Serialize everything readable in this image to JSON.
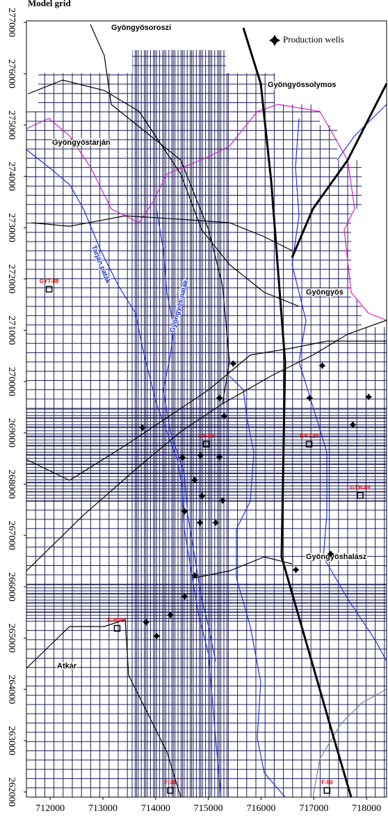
{
  "map": {
    "title": "Model grid",
    "legend": "Production wells",
    "xlim": [
      711550,
      718380
    ],
    "ylim": [
      261900,
      277030
    ],
    "xticks": [
      712000,
      713000,
      714000,
      715000,
      716000,
      717000,
      718000
    ],
    "yticks": [
      262000,
      263000,
      264000,
      265000,
      266000,
      267000,
      268000,
      269000,
      270000,
      271000,
      272000,
      273000,
      274000,
      275000,
      276000,
      277000
    ],
    "towns": [
      "Gyöngyösoroszi",
      "Gyöngyössolymos",
      "Gyöngyöstarján",
      "Gyöngyös",
      "Gyöngyöshalász",
      "Atkár"
    ],
    "streams": [
      "Tarján patak",
      "Gyöngyös patak"
    ],
    "wells": [
      [
        715470,
        270350
      ],
      [
        717160,
        270310
      ],
      [
        716920,
        269680
      ],
      [
        718040,
        269700
      ],
      [
        715210,
        269680
      ],
      [
        715300,
        269330
      ],
      [
        713750,
        269100
      ],
      [
        717740,
        269160
      ],
      [
        714850,
        268560
      ],
      [
        715210,
        268530
      ],
      [
        714510,
        268520
      ],
      [
        714740,
        268080
      ],
      [
        714880,
        267770
      ],
      [
        715270,
        267680
      ],
      [
        714550,
        267470
      ],
      [
        714840,
        267250
      ],
      [
        715140,
        267250
      ],
      [
        717320,
        266640
      ],
      [
        716660,
        266330
      ],
      [
        714740,
        266220
      ],
      [
        714550,
        265810
      ],
      [
        713820,
        265310
      ],
      [
        714280,
        265450
      ],
      [
        714020,
        265040
      ]
    ],
    "observation_wells": [
      {
        "label": "GYT-88",
        "x": 711980,
        "y": 271800
      },
      {
        "label": "GY-88",
        "x": 714960,
        "y": 268780
      },
      {
        "label": "GY-129",
        "x": 716910,
        "y": 268780
      },
      {
        "label": "GYH-89",
        "x": 717880,
        "y": 267780
      },
      {
        "label": "F-40/01",
        "x": 713270,
        "y": 265190
      },
      {
        "label": "F-38",
        "x": 714280,
        "y": 262030
      },
      {
        "label": "F-50",
        "x": 717250,
        "y": 262030
      }
    ]
  }
}
